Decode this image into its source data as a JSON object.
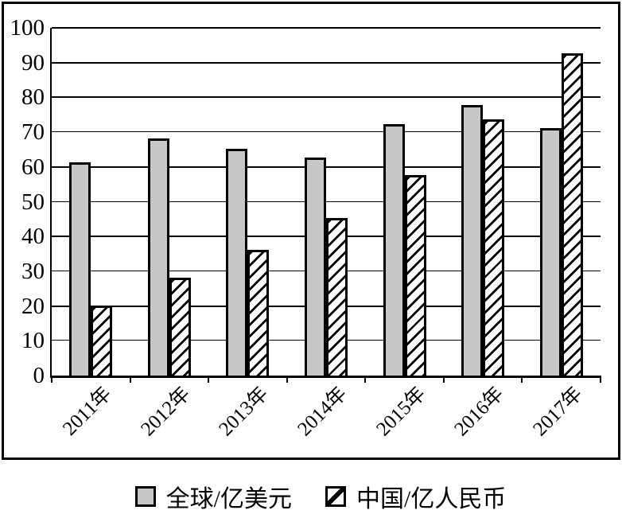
{
  "chart_data": {
    "type": "bar",
    "title": "",
    "xlabel": "",
    "ylabel": "",
    "categories": [
      "2011年",
      "2012年",
      "2013年",
      "2014年",
      "2015年",
      "2016年",
      "2017年"
    ],
    "series": [
      {
        "name": "全球/亿美元",
        "pattern": "solid",
        "fill": "#c7c7c7",
        "values": [
          61,
          68,
          65,
          62.5,
          72,
          77.5,
          71
        ]
      },
      {
        "name": "中国/亿人民币",
        "pattern": "hatch",
        "fill": "#ffffff",
        "hatch_color": "#000000",
        "values": [
          20,
          28,
          36,
          45,
          57.5,
          73.5,
          92.5
        ]
      }
    ],
    "ylim": [
      0,
      100
    ],
    "yticks": [
      0,
      10,
      20,
      30,
      40,
      50,
      60,
      70,
      80,
      90,
      100
    ],
    "grid": "horizontal",
    "legend_position": "bottom"
  },
  "colors": {
    "axis": "#000000",
    "frame": "#000000",
    "background": "#ffffff",
    "bar_gray": "#c7c7c7",
    "hatch": "#000000"
  }
}
